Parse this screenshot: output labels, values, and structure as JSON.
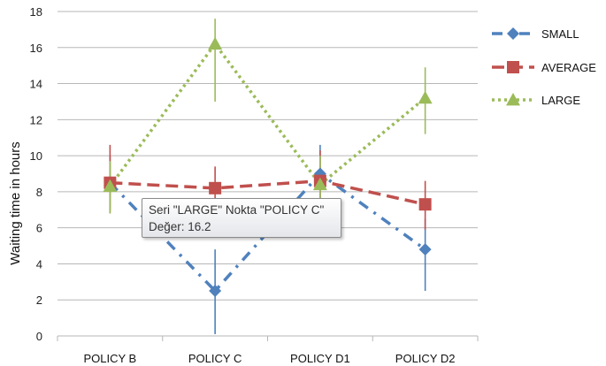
{
  "chart_data": {
    "type": "line",
    "categories": [
      "POLICY B",
      "POLICY C",
      "POLICY D1",
      "POLICY D2"
    ],
    "ylabel": "Waiting time in hours",
    "xlabel": "",
    "ylim": [
      0,
      18
    ],
    "yticks": [
      0,
      2,
      4,
      6,
      8,
      10,
      12,
      14,
      16,
      18
    ],
    "grid": "horizontal",
    "legend_position": "right",
    "series": [
      {
        "name": "SMALL",
        "color": "#4f81bd",
        "marker": "diamond",
        "line_style": "dash-dot",
        "values": [
          8.5,
          2.5,
          9.0,
          4.8
        ],
        "error_bars": [
          [
            7.0,
            10.0
          ],
          [
            0.1,
            4.8
          ],
          [
            7.5,
            10.6
          ],
          [
            2.5,
            6.5
          ]
        ]
      },
      {
        "name": "AVERAGE",
        "color": "#c0504d",
        "marker": "square",
        "line_style": "dashed",
        "values": [
          8.5,
          8.2,
          8.6,
          7.3
        ],
        "error_bars": [
          [
            6.8,
            10.6
          ],
          [
            7.0,
            9.4
          ],
          [
            7.4,
            10.3
          ],
          [
            5.9,
            8.6
          ]
        ]
      },
      {
        "name": "LARGE",
        "color": "#9bbb59",
        "marker": "triangle",
        "line_style": "dotted",
        "values": [
          8.3,
          16.2,
          8.4,
          13.2
        ],
        "error_bars": [
          [
            6.8,
            9.7
          ],
          [
            13.0,
            17.6
          ],
          [
            7.2,
            10.0
          ],
          [
            11.2,
            14.9
          ]
        ]
      }
    ]
  },
  "tooltip": {
    "line1": "Seri \"LARGE\" Nokta \"POLICY C\"",
    "line2": "Değer: 16.2"
  }
}
